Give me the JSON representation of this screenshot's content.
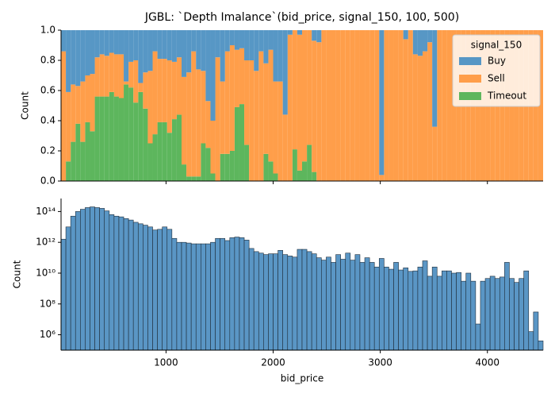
{
  "chart_data": [
    {
      "type": "stacked_histogram",
      "title": "JGBL: `Depth Imalance`(bid_price, signal_150, 100, 500)",
      "ylabel": "Count",
      "legend_title": "signal_150",
      "legend": "upper right",
      "bins": [
        20,
        65,
        110,
        155,
        200,
        245,
        290,
        335,
        380,
        425,
        470,
        515,
        560,
        605,
        650,
        695,
        740,
        785,
        830,
        875,
        920,
        965,
        1010,
        1055,
        1100,
        1145,
        1190,
        1235,
        1280,
        1325,
        1370,
        1415,
        1460,
        1505,
        1550,
        1595,
        1640,
        1685,
        1730,
        1775,
        1820,
        1865,
        1910,
        1955,
        2000,
        2045,
        2090,
        2135,
        2180,
        2225,
        2270,
        2315,
        2360,
        2405,
        2450,
        2495,
        2540,
        2585,
        2630,
        2675,
        2720,
        2765,
        2810,
        2855,
        2900,
        2945,
        2990,
        3035,
        3080,
        3125,
        3170,
        3215,
        3260,
        3305,
        3350,
        3395,
        3440,
        3485,
        3530,
        3575,
        3620,
        3665,
        3710,
        3755,
        3800,
        3845,
        3890,
        3935,
        3980,
        4025,
        4070,
        4115,
        4160,
        4205,
        4250,
        4295,
        4340,
        4385,
        4430,
        4475,
        4520
      ],
      "xlim": [
        20,
        4520
      ],
      "xticks": [
        1000,
        2000,
        3000,
        4000
      ],
      "ylim": [
        0,
        1
      ],
      "yticks": [
        {
          "value": 0,
          "label": "0.0"
        },
        0.2,
        0.4,
        0.6,
        0.8,
        {
          "value": 1,
          "label": "1.0"
        }
      ],
      "series": [
        {
          "name": "Buy",
          "color": "#5797c5",
          "values": [
            0.14,
            0.41,
            0.36,
            0.37,
            0.34,
            0.3,
            0.29,
            0.18,
            0.16,
            0.17,
            0.15,
            0.16,
            0.16,
            0.34,
            0.21,
            0.2,
            0.35,
            0.28,
            0.27,
            0.14,
            0.19,
            0.19,
            0.2,
            0.21,
            0.18,
            0.31,
            0.28,
            0.14,
            0.26,
            0.27,
            0.47,
            0.6,
            0.18,
            0.34,
            0.14,
            0.1,
            0.13,
            0.12,
            0.2,
            0.2,
            0.27,
            0.14,
            0.22,
            0.13,
            0.34,
            0.34,
            0.56,
            0.03,
            0,
            0.03,
            0,
            0,
            0.07,
            0.08,
            0,
            0,
            0,
            0,
            0,
            0,
            0,
            0,
            0,
            0,
            0,
            0,
            0.96,
            0,
            0,
            0,
            0,
            0.06,
            0,
            0.16,
            0.17,
            0.14,
            0.08,
            0.64,
            0,
            0,
            0,
            0,
            0,
            0,
            0,
            0,
            0,
            0,
            0,
            0,
            0,
            0,
            0,
            0,
            0,
            0,
            0,
            0,
            0,
            0
          ]
        },
        {
          "name": "Sell",
          "color": "#ff9e4a",
          "values": [
            0.86,
            0.46,
            0.38,
            0.25,
            0.4,
            0.31,
            0.38,
            0.26,
            0.28,
            0.27,
            0.26,
            0.28,
            0.29,
            0.02,
            0.17,
            0.28,
            0.06,
            0.24,
            0.48,
            0.55,
            0.42,
            0.42,
            0.48,
            0.38,
            0.38,
            0.58,
            0.69,
            0.83,
            0.71,
            0.48,
            0.31,
            0.35,
            0.82,
            0.48,
            0.68,
            0.7,
            0.38,
            0.37,
            0.56,
            0.8,
            0.73,
            0.86,
            0.6,
            0.74,
            0.61,
            0.66,
            0.44,
            0.97,
            0.79,
            0.9,
            0.87,
            0.76,
            0.87,
            0.92,
            1,
            1,
            1,
            1,
            1,
            1,
            1,
            1,
            1,
            1,
            1,
            1,
            0.04,
            1,
            1,
            1,
            1,
            0.94,
            1,
            0.84,
            0.83,
            0.86,
            0.92,
            0.36,
            1,
            1,
            1,
            1,
            1,
            1,
            1,
            1,
            1,
            1,
            1,
            1,
            1,
            1,
            1,
            1,
            1,
            1,
            1,
            1,
            1,
            1
          ]
        },
        {
          "name": "Timeout",
          "color": "#5db65d",
          "values": [
            0,
            0.13,
            0.26,
            0.38,
            0.26,
            0.39,
            0.33,
            0.56,
            0.56,
            0.56,
            0.59,
            0.56,
            0.55,
            0.64,
            0.62,
            0.52,
            0.59,
            0.48,
            0.25,
            0.31,
            0.39,
            0.39,
            0.32,
            0.41,
            0.44,
            0.11,
            0.03,
            0.03,
            0.03,
            0.25,
            0.22,
            0.05,
            0,
            0.18,
            0.18,
            0.2,
            0.49,
            0.51,
            0.24,
            0,
            0,
            0,
            0.18,
            0.13,
            0.05,
            0,
            0,
            0,
            0.21,
            0.07,
            0.13,
            0.24,
            0.06,
            0,
            0,
            0,
            0,
            0,
            0,
            0,
            0,
            0,
            0,
            0,
            0,
            0,
            0,
            0,
            0,
            0,
            0,
            0,
            0,
            0,
            0,
            0,
            0,
            0,
            0,
            0,
            0,
            0,
            0,
            0,
            0,
            0,
            0,
            0,
            0,
            0,
            0,
            0,
            0,
            0,
            0,
            0,
            0,
            0,
            0,
            0
          ]
        }
      ]
    },
    {
      "type": "histogram",
      "xlabel": "bid_price",
      "ylabel": "Count",
      "log_y": true,
      "color": "#5a96c5",
      "bins": [
        20,
        65,
        110,
        155,
        200,
        245,
        290,
        335,
        380,
        425,
        470,
        515,
        560,
        605,
        650,
        695,
        740,
        785,
        830,
        875,
        920,
        965,
        1010,
        1055,
        1100,
        1145,
        1190,
        1235,
        1280,
        1325,
        1370,
        1415,
        1460,
        1505,
        1550,
        1595,
        1640,
        1685,
        1730,
        1775,
        1820,
        1865,
        1910,
        1955,
        2000,
        2045,
        2090,
        2135,
        2180,
        2225,
        2270,
        2315,
        2360,
        2405,
        2450,
        2495,
        2540,
        2585,
        2630,
        2675,
        2720,
        2765,
        2810,
        2855,
        2900,
        2945,
        2990,
        3035,
        3080,
        3125,
        3170,
        3215,
        3260,
        3305,
        3350,
        3395,
        3440,
        3485,
        3530,
        3575,
        3620,
        3665,
        3710,
        3755,
        3800,
        3845,
        3890,
        3935,
        3980,
        4025,
        4070,
        4115,
        4160,
        4205,
        4250,
        4295,
        4340,
        4385,
        4430,
        4475,
        4520
      ],
      "values": [
        1600000000000.0,
        10000000000000.0,
        50000000000000.0,
        100000000000000.0,
        140000000000000.0,
        180000000000000.0,
        200000000000000.0,
        180000000000000.0,
        160000000000000.0,
        110000000000000.0,
        63000000000000.0,
        50000000000000.0,
        45000000000000.0,
        35000000000000.0,
        28000000000000.0,
        20000000000000.0,
        16000000000000.0,
        13000000000000.0,
        10000000000000.0,
        6300000000000.0,
        7000000000000.0,
        10000000000000.0,
        7000000000000.0,
        1800000000000.0,
        1000000000000.0,
        1000000000000.0,
        900000000000.0,
        800000000000.0,
        800000000000.0,
        800000000000.0,
        800000000000.0,
        1000000000000.0,
        1800000000000.0,
        1800000000000.0,
        1300000000000.0,
        2000000000000.0,
        2200000000000.0,
        2000000000000.0,
        1400000000000.0,
        400000000000.0,
        250000000000.0,
        200000000000.0,
        160000000000.0,
        180000000000.0,
        180000000000.0,
        300000000000.0,
        160000000000.0,
        130000000000.0,
        110000000000.0,
        350000000000.0,
        350000000000.0,
        250000000000.0,
        180000000000.0,
        100000000000.0,
        70000000000.0,
        110000000000.0,
        50000000000.0,
        160000000000.0,
        80000000000.0,
        200000000000.0,
        70000000000.0,
        160000000000.0,
        50000000000.0,
        100000000000.0,
        50000000000.0,
        25000000000.0,
        90000000000.0,
        25000000000.0,
        18000000000.0,
        50000000000.0,
        16000000000.0,
        22000000000.0,
        13000000000.0,
        14000000000.0,
        25000000000.0,
        63000000000.0,
        6300000000.0,
        25000000000.0,
        6300000000.0,
        14000000000.0,
        14000000000.0,
        10000000000.0,
        11000000000.0,
        3000000000.0,
        10000000000.0,
        3000000000.0,
        5000000.0,
        3000000000.0,
        4500000000.0,
        6300000000.0,
        4500000000.0,
        5600000000.0,
        50000000000.0,
        4500000000.0,
        2500000000.0,
        4500000000.0,
        14000000000.0,
        1600000.0,
        30000000.0,
        400000.0
      ],
      "xlim": [
        20,
        4520
      ],
      "xticks": [
        1000,
        2000,
        3000,
        4000
      ],
      "ylim": [
        100000.0,
        700000000000000.0
      ],
      "yticks": [
        {
          "value": 1000000.0,
          "label": "10⁶"
        },
        {
          "value": 100000000.0,
          "label": "10⁸"
        },
        {
          "value": 10000000000.0,
          "label": "10¹⁰"
        },
        {
          "value": 1000000000000.0,
          "label": "10¹²"
        },
        {
          "value": 100000000000000.0,
          "label": "10¹⁴"
        }
      ]
    }
  ]
}
